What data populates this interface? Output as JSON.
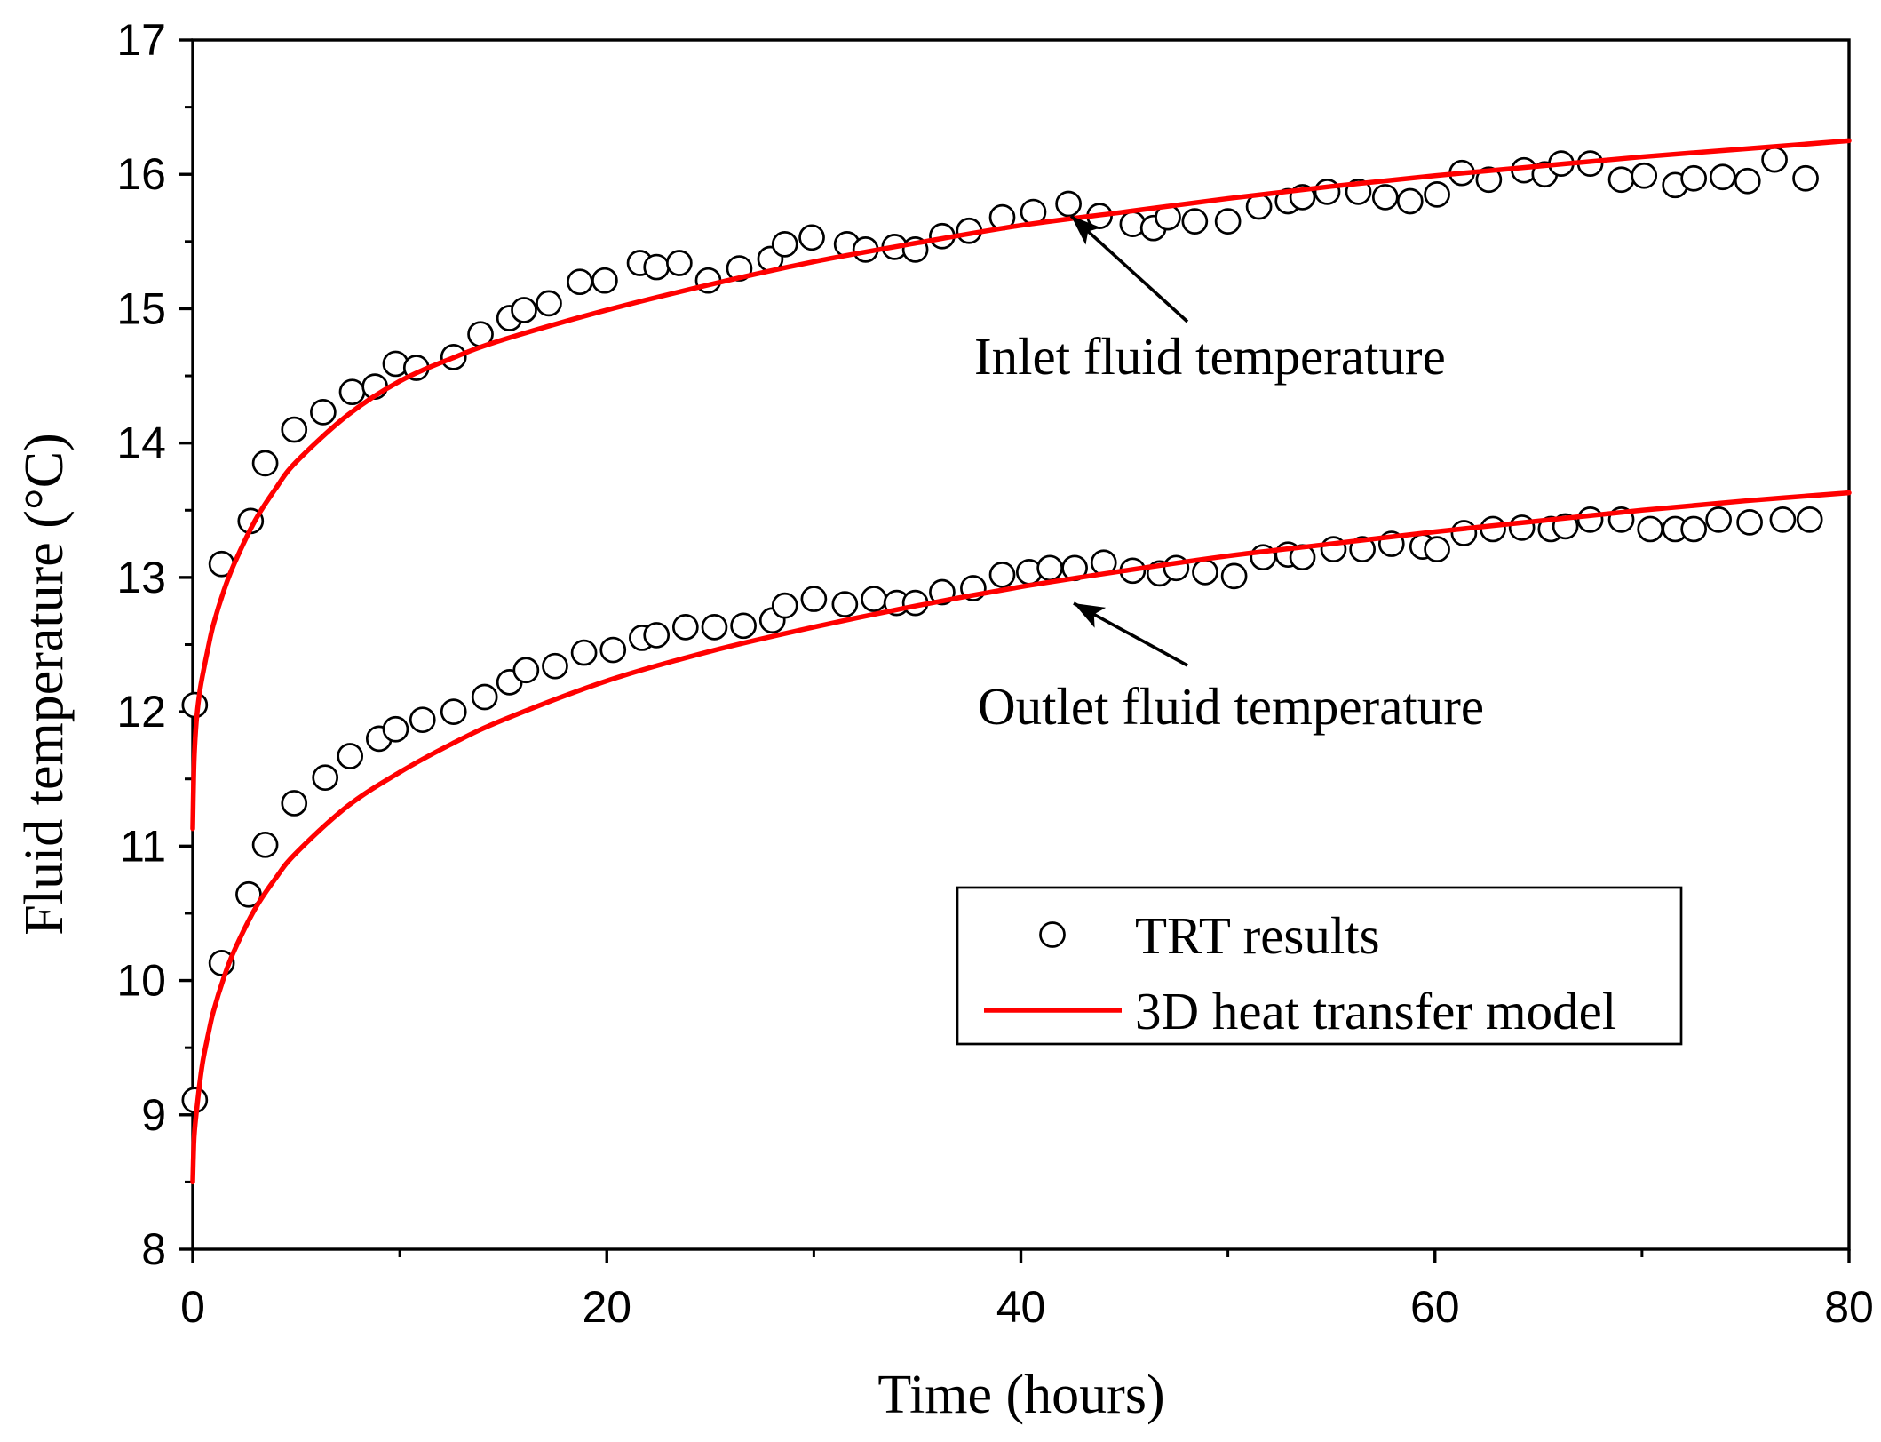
{
  "chart_data": {
    "type": "scatter",
    "xlabel": "Time (hours)",
    "ylabel": "Fluid temperature (°C)",
    "xlim": [
      0,
      80
    ],
    "ylim": [
      8,
      17
    ],
    "xticks": [
      0,
      20,
      40,
      60,
      80
    ],
    "xminor": [
      10,
      30,
      50,
      70
    ],
    "yticks": [
      8,
      9,
      10,
      11,
      12,
      13,
      14,
      15,
      16,
      17
    ],
    "grid": false,
    "colors": {
      "model": "#ff0000",
      "marker_edge": "#000000",
      "marker_fill": "#ffffff",
      "axis": "#000000"
    },
    "legend": {
      "position": "lower-right",
      "entries": [
        {
          "label": "TRT results",
          "marker": "circle"
        },
        {
          "label": "3D heat transfer model",
          "marker": "line"
        }
      ]
    },
    "annotations": [
      {
        "text": "Inlet fluid temperature",
        "curve": 0
      },
      {
        "text": "Outlet fluid temperature",
        "curve": 1
      }
    ],
    "curves": [
      {
        "trt": {
          "x": [
            0.1,
            1.4,
            2.8,
            3.5,
            4.9,
            6.3,
            7.7,
            8.8,
            9.8,
            10.8,
            12.6,
            13.9,
            15.3,
            16.0,
            17.2,
            18.7,
            19.9,
            21.6,
            22.4,
            23.5,
            24.9,
            26.4,
            27.9,
            28.6,
            29.9,
            31.6,
            32.5,
            33.9,
            34.9,
            36.2,
            37.5,
            39.1,
            40.6,
            42.3,
            43.8,
            45.4,
            46.4,
            47.1,
            48.4,
            50.0,
            51.5,
            52.9,
            53.6,
            54.8,
            56.3,
            57.6,
            58.8,
            60.1,
            61.3,
            62.6,
            64.3,
            65.3,
            66.1,
            67.5,
            69.0,
            70.1,
            71.6,
            72.5,
            73.9,
            75.1,
            76.4,
            77.9
          ],
          "y": [
            12.05,
            13.1,
            13.42,
            13.85,
            14.1,
            14.23,
            14.38,
            14.42,
            14.59,
            14.56,
            14.64,
            14.81,
            14.93,
            14.99,
            15.04,
            15.2,
            15.21,
            15.34,
            15.31,
            15.34,
            15.21,
            15.3,
            15.37,
            15.48,
            15.53,
            15.48,
            15.44,
            15.46,
            15.44,
            15.54,
            15.58,
            15.68,
            15.72,
            15.78,
            15.69,
            15.63,
            15.6,
            15.68,
            15.65,
            15.65,
            15.76,
            15.8,
            15.83,
            15.87,
            15.87,
            15.83,
            15.8,
            15.85,
            16.01,
            15.96,
            16.03,
            16.0,
            16.08,
            16.08,
            15.96,
            15.99,
            15.92,
            15.97,
            15.98,
            15.95,
            16.11,
            15.97
          ]
        },
        "model": {
          "x": [
            0,
            0.05,
            0.1,
            0.2,
            0.35,
            0.5,
            0.75,
            1,
            1.5,
            2,
            3,
            4,
            5,
            7.5,
            10,
            12.5,
            15,
            20,
            25,
            30,
            35,
            40,
            45,
            50,
            55,
            60,
            65,
            70,
            75,
            80
          ],
          "y": [
            11.13,
            11.55,
            11.75,
            11.97,
            12.16,
            12.29,
            12.48,
            12.65,
            12.9,
            13.1,
            13.42,
            13.66,
            13.86,
            14.21,
            14.46,
            14.63,
            14.77,
            14.99,
            15.18,
            15.35,
            15.49,
            15.62,
            15.72,
            15.82,
            15.91,
            15.99,
            16.06,
            16.13,
            16.19,
            16.25
          ]
        }
      },
      {
        "trt": {
          "x": [
            0.1,
            1.4,
            2.7,
            3.5,
            4.9,
            6.4,
            7.6,
            9.0,
            9.8,
            11.1,
            12.6,
            14.1,
            15.3,
            16.1,
            17.5,
            18.9,
            20.3,
            21.7,
            22.4,
            23.8,
            25.2,
            26.6,
            28.0,
            28.6,
            30.0,
            31.5,
            32.9,
            34.0,
            34.9,
            36.2,
            37.7,
            39.1,
            40.4,
            41.4,
            42.6,
            44.0,
            45.4,
            46.7,
            47.5,
            48.9,
            50.3,
            51.7,
            52.9,
            53.6,
            55.1,
            56.5,
            57.9,
            59.4,
            60.1,
            61.4,
            62.8,
            64.2,
            65.6,
            66.3,
            67.5,
            69.0,
            70.4,
            71.6,
            72.5,
            73.7,
            75.2,
            76.8,
            78.1
          ],
          "y": [
            9.11,
            10.13,
            10.64,
            11.01,
            11.32,
            11.51,
            11.67,
            11.8,
            11.87,
            11.94,
            12.0,
            12.11,
            12.22,
            12.31,
            12.34,
            12.44,
            12.46,
            12.55,
            12.57,
            12.63,
            12.63,
            12.64,
            12.68,
            12.79,
            12.84,
            12.8,
            12.84,
            12.81,
            12.81,
            12.89,
            12.92,
            13.02,
            13.04,
            13.07,
            13.07,
            13.11,
            13.05,
            13.03,
            13.07,
            13.04,
            13.01,
            13.15,
            13.17,
            13.15,
            13.21,
            13.21,
            13.25,
            13.23,
            13.21,
            13.33,
            13.36,
            13.37,
            13.36,
            13.38,
            13.43,
            13.43,
            13.36,
            13.36,
            13.36,
            13.43,
            13.41,
            13.43,
            13.43
          ]
        },
        "model": {
          "x": [
            0,
            0.05,
            0.1,
            0.2,
            0.35,
            0.5,
            0.75,
            1,
            1.5,
            2,
            3,
            4,
            5,
            7.5,
            10,
            12.5,
            15,
            20,
            25,
            30,
            35,
            40,
            45,
            50,
            55,
            60,
            65,
            70,
            75,
            80
          ],
          "y": [
            8.5,
            8.78,
            8.9,
            9.05,
            9.25,
            9.41,
            9.6,
            9.77,
            10.02,
            10.22,
            10.53,
            10.76,
            10.95,
            11.3,
            11.55,
            11.76,
            11.94,
            12.23,
            12.45,
            12.63,
            12.79,
            12.93,
            13.05,
            13.16,
            13.25,
            13.34,
            13.42,
            13.5,
            13.57,
            13.63
          ]
        }
      }
    ]
  }
}
